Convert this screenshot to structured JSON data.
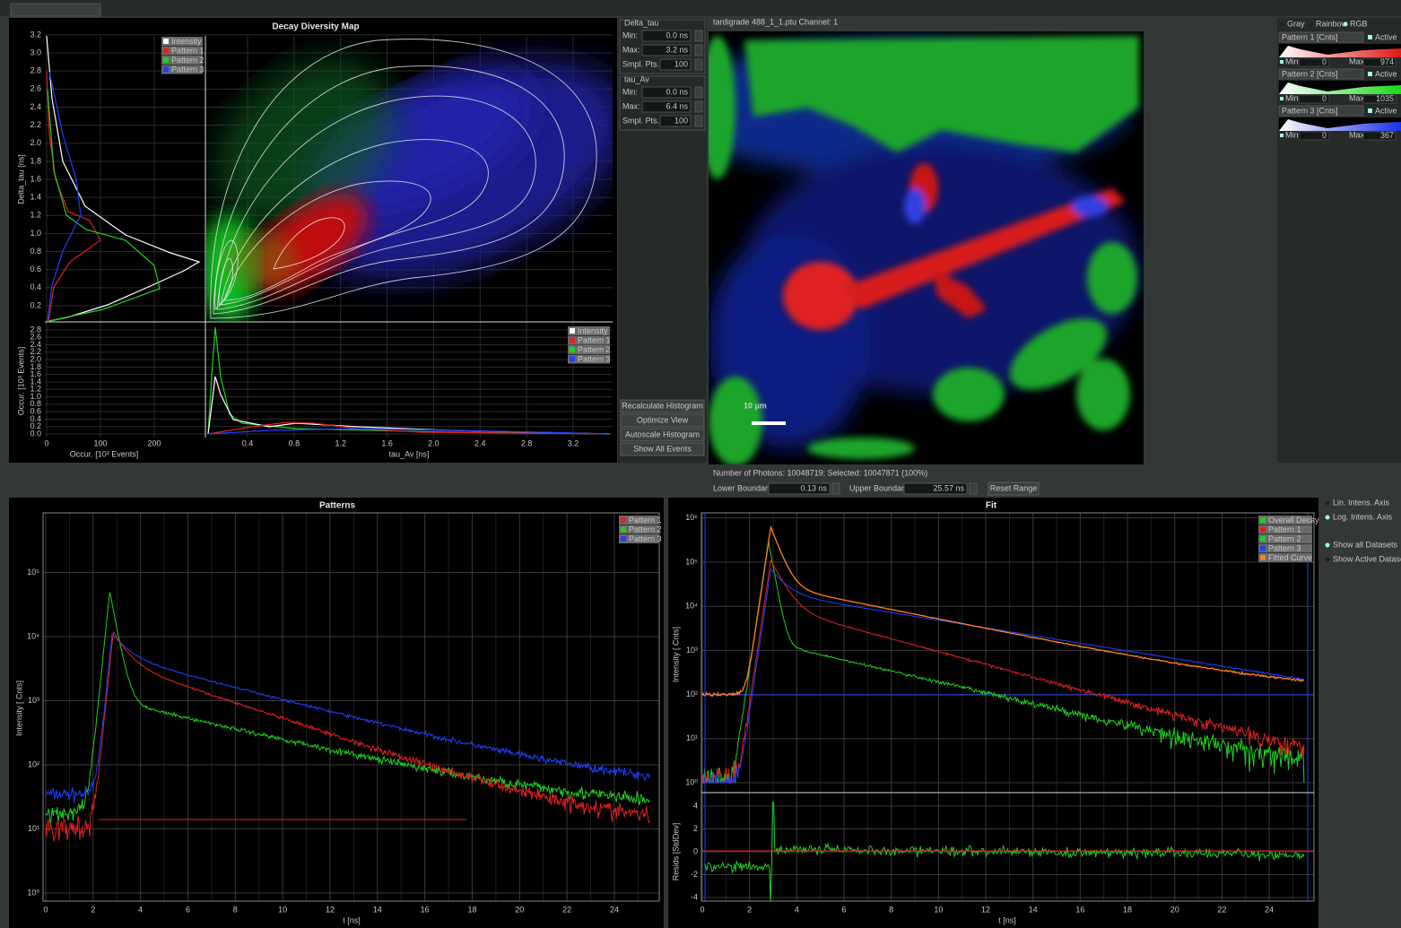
{
  "ddm": {
    "title": "Decay Diversity Map",
    "delta_axis_label": "Delta_tau [ns]",
    "delta_ticks": [
      "0.2",
      "0.4",
      "0.6",
      "0.8",
      "1.0",
      "1.2",
      "1.4",
      "1.6",
      "1.8",
      "2.0",
      "2.2",
      "2.4",
      "2.6",
      "2.8",
      "3.0",
      "3.2"
    ],
    "legend_top": [
      "Intensity",
      "Pattern 1",
      "Pattern 2",
      "Pattern 3"
    ],
    "legend_bottom": [
      "Intensity",
      "Pattern 1",
      "Pattern 2",
      "Pattern 3"
    ],
    "occ_x_label": "Occur. [10³ Events]",
    "occ_x_ticks": [
      "0",
      "100",
      "200"
    ],
    "occ_y_label": "Occur. [10³ Events]",
    "occ_y_ticks": [
      "0.0",
      "0.2",
      "0.4",
      "0.6",
      "0.8",
      "1.0",
      "1.2",
      "1.4",
      "1.6",
      "1.8",
      "2.0",
      "2.2",
      "2.4",
      "2.6",
      "2.8"
    ],
    "tau_axis_label": "tau_Av [ns]",
    "tau_ticks": [
      "0.4",
      "0.8",
      "1.2",
      "1.6",
      "2.0",
      "2.4",
      "2.8",
      "3.2"
    ]
  },
  "controls": {
    "groups": [
      {
        "title": "Delta_tau",
        "fields": [
          {
            "label": "Min:",
            "value": "0.0 ns"
          },
          {
            "label": "Max:",
            "value": "3.2 ns"
          },
          {
            "label": "Smpl. Pts.",
            "value": "100"
          }
        ]
      },
      {
        "title": "tau_Av",
        "fields": [
          {
            "label": "Min:",
            "value": "0.0 ns"
          },
          {
            "label": "Max:",
            "value": "6.4 ns"
          },
          {
            "label": "Smpl. Pts.",
            "value": "100"
          }
        ]
      }
    ],
    "buttons": [
      "Recalculate Histogram",
      "Optimize View",
      "Autoscale Histogram",
      "Show All Events"
    ]
  },
  "image": {
    "header": "tardigrade 488_1_1.ptu Channel: 1",
    "scale_bar": "10 µm"
  },
  "color_panel": {
    "modes": [
      "Gray",
      "Rainbow",
      "RGB"
    ],
    "patterns": [
      {
        "name": "Pattern 1 [Cnts]",
        "active": "Active",
        "min_label": "Min",
        "min": "0",
        "max_label": "Max",
        "max": "974"
      },
      {
        "name": "Pattern 2 [Cnts]",
        "active": "Active",
        "min_label": "Min",
        "min": "0",
        "max_label": "Max",
        "max": "1035"
      },
      {
        "name": "Pattern 3 [Cnts]",
        "active": "Active",
        "min_label": "Min",
        "min": "0",
        "max_label": "Max",
        "max": "367"
      }
    ]
  },
  "range_bar": {
    "photons": "Number of Photons: 10048719; Selected: 10047871 (100%)",
    "lower_label": "Lower Boundary:",
    "lower": "0.13 ns",
    "upper_label": "Upper Boundary:",
    "upper": "25.57 ns",
    "reset": "Reset Range"
  },
  "patterns_plot": {
    "title": "Patterns",
    "y_label": "Intensity [ Cnts]",
    "x_label": "t [ns]",
    "x_ticks": [
      "0",
      "2",
      "4",
      "6",
      "8",
      "10",
      "12",
      "14",
      "16",
      "18",
      "20",
      "22",
      "24"
    ],
    "y_ticks": [
      "10⁰",
      "10¹",
      "10²",
      "10³",
      "10⁴",
      "10⁵"
    ],
    "legend": [
      "Pattern 1",
      "Pattern 2",
      "Pattern 3"
    ]
  },
  "fit_plot": {
    "title": "Fit",
    "y_label": "Intensity [ Cnts]",
    "x_label": "t [ns]",
    "x_ticks": [
      "0",
      "2",
      "4",
      "6",
      "8",
      "10",
      "12",
      "14",
      "16",
      "18",
      "20",
      "22",
      "24"
    ],
    "y_ticks": [
      "10⁰",
      "10¹",
      "10²",
      "10³",
      "10⁴",
      "10⁵",
      "10⁶"
    ],
    "resid_label": "Resids [StdDev]",
    "resid_ticks": [
      "4",
      "2",
      "0",
      "-2",
      "-4"
    ],
    "legend": [
      "Overall Decay",
      "Pattern 1",
      "Pattern 2",
      "Pattern 3",
      "Fitted Curve"
    ]
  },
  "view_options": [
    "Lin. Intens. Axis",
    "Log. Intens. Axis",
    "Show all Datasets",
    "Show Active Dataset"
  ]
}
